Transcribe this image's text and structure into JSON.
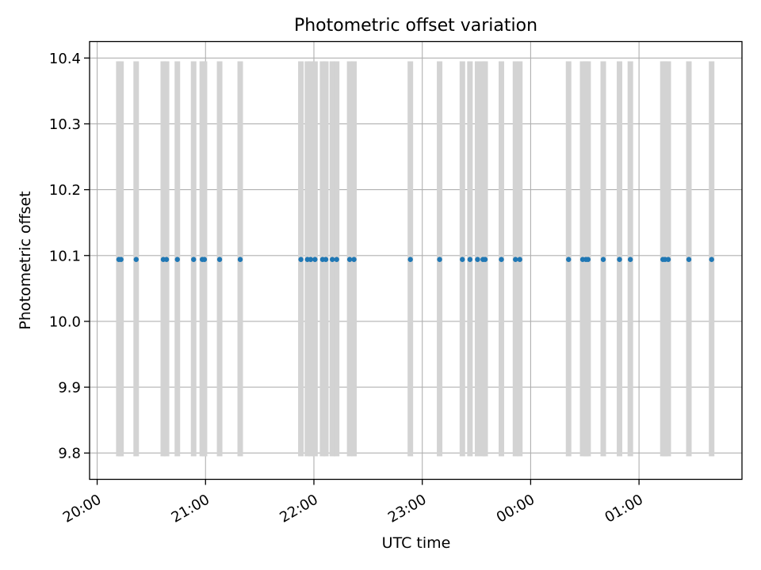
{
  "chart_data": {
    "type": "scatter",
    "title": "Photometric offset variation",
    "xlabel": "UTC time",
    "ylabel": "Photometric offset",
    "x_ticks": [
      "20:00",
      "21:00",
      "22:00",
      "23:00",
      "00:00",
      "01:00"
    ],
    "y_ticks": [
      "9.8",
      "9.9",
      "10.0",
      "10.1",
      "10.2",
      "10.3",
      "10.4"
    ],
    "xlim_hours": [
      19.93,
      25.95
    ],
    "ylim": [
      9.76,
      10.425
    ],
    "grid": true,
    "colors": {
      "points": "#1f77b4",
      "bands": "#d3d3d3",
      "grid": "#b0b0b0"
    },
    "bands": {
      "y_low": 9.795,
      "y_high": 10.395
    },
    "points": {
      "y": 10.094,
      "x_hours": [
        20.2,
        20.22,
        20.36,
        20.61,
        20.64,
        20.74,
        20.89,
        20.97,
        20.99,
        21.13,
        21.32,
        21.88,
        21.94,
        21.97,
        22.01,
        22.08,
        22.11,
        22.17,
        22.21,
        22.33,
        22.37,
        22.89,
        23.16,
        23.37,
        23.44,
        23.51,
        23.56,
        23.58,
        23.73,
        23.86,
        23.9,
        24.35,
        24.48,
        24.51,
        24.53,
        24.67,
        24.82,
        24.92,
        25.22,
        25.24,
        25.27,
        25.46,
        25.67
      ]
    }
  }
}
